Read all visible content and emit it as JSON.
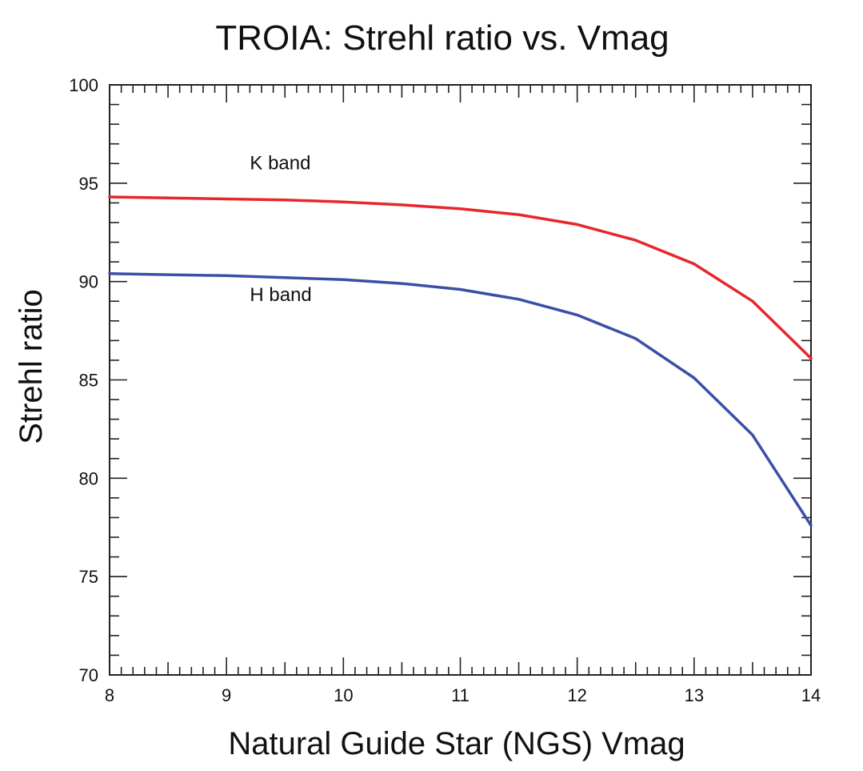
{
  "chart_data": {
    "type": "line",
    "title": "TROIA: Strehl ratio vs. Vmag",
    "xlabel": "Natural Guide Star (NGS) Vmag",
    "ylabel": "Strehl ratio",
    "xlim": [
      8,
      14
    ],
    "ylim": [
      70,
      100
    ],
    "xticks": [
      8,
      9,
      10,
      11,
      12,
      13,
      14
    ],
    "yticks": [
      70,
      75,
      80,
      85,
      90,
      95,
      100
    ],
    "x_minor_step": 0.1,
    "y_minor_step": 1,
    "grid": false,
    "series": [
      {
        "name": "K band",
        "color": "#e8262b",
        "x": [
          8,
          8.5,
          9,
          9.5,
          10,
          10.5,
          11,
          11.5,
          12,
          12.5,
          13,
          13.5,
          14
        ],
        "values": [
          94.3,
          94.25,
          94.2,
          94.15,
          94.05,
          93.9,
          93.7,
          93.4,
          92.9,
          92.1,
          90.9,
          89.0,
          86.1
        ]
      },
      {
        "name": "H band",
        "color": "#3a4fa6",
        "x": [
          8,
          8.5,
          9,
          9.5,
          10,
          10.5,
          11,
          11.5,
          12,
          12.5,
          13,
          13.5,
          14
        ],
        "values": [
          90.4,
          90.35,
          90.3,
          90.2,
          90.1,
          89.9,
          89.6,
          89.1,
          88.3,
          87.1,
          85.1,
          82.2,
          77.6
        ]
      }
    ],
    "annotations": [
      {
        "text": "K band",
        "x": 9.2,
        "y": 95.7
      },
      {
        "text": "H band",
        "x": 9.2,
        "y": 89.0
      }
    ]
  }
}
